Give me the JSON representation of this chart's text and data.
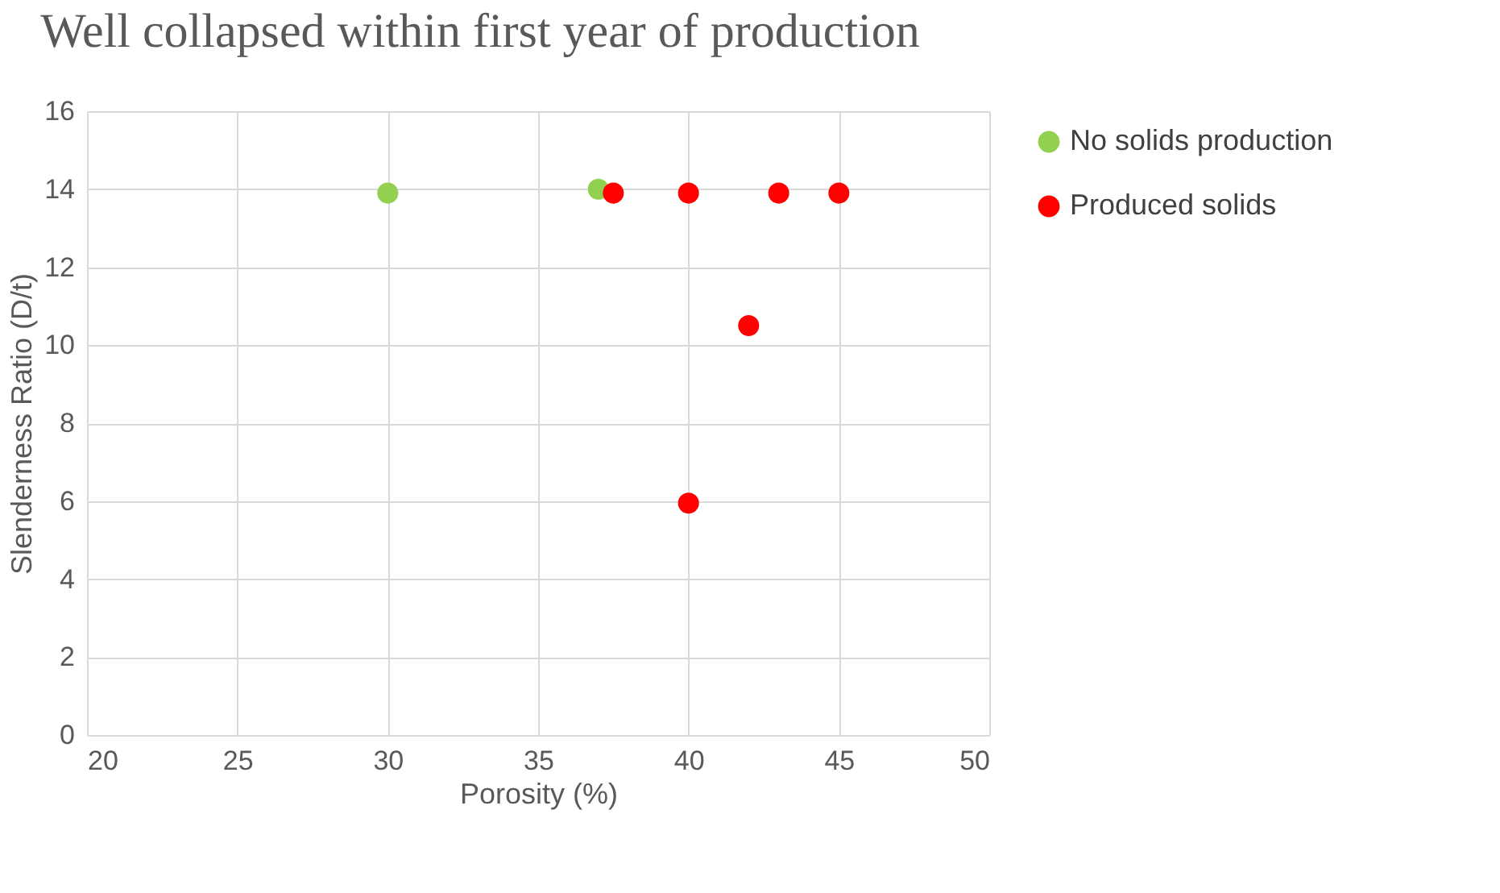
{
  "chart_data": {
    "type": "scatter",
    "title": "Well collapsed within first year of production",
    "xlabel": "Porosity (%)",
    "ylabel": "Slenderness Ratio (D/t)",
    "series": [
      {
        "name": "No solids production",
        "color": "#92d050",
        "x": [
          30,
          37
        ],
        "values": [
          13.9,
          14.0
        ]
      },
      {
        "name": "Produced solids",
        "color": "#ff0000",
        "x": [
          37.5,
          40,
          43,
          45,
          42,
          40
        ],
        "values": [
          13.9,
          13.9,
          13.9,
          13.9,
          10.5,
          5.95
        ]
      }
    ],
    "xlim": [
      20,
      50
    ],
    "xticks": [
      20,
      25,
      30,
      35,
      40,
      45,
      50
    ],
    "ylim": [
      0,
      16
    ],
    "yticks": [
      0,
      2,
      4,
      6,
      8,
      10,
      12,
      14,
      16
    ],
    "grid": true,
    "legend": "right",
    "marker": "circle"
  }
}
